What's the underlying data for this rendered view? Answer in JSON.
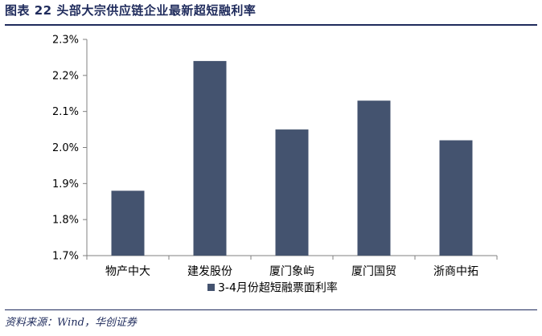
{
  "header": {
    "title": "图表 22 头部大宗供应链企业最新超短融利率"
  },
  "footer": {
    "source": "资料来源：Wind，华创证券"
  },
  "colors": {
    "bar": "#44536f",
    "title": "#1f2b5c",
    "axis": "#808080"
  },
  "chart_data": {
    "type": "bar",
    "title": "",
    "xlabel": "",
    "ylabel": "",
    "categories": [
      "物产中大",
      "建发股份",
      "厦门象屿",
      "厦门国贸",
      "浙商中拓"
    ],
    "series": [
      {
        "name": "3-4月份超短融票面利率",
        "values": [
          1.88,
          2.24,
          2.05,
          2.13,
          2.02
        ]
      }
    ],
    "ylim": [
      1.7,
      2.3
    ],
    "yticks": [
      1.7,
      1.8,
      1.9,
      2.0,
      2.1,
      2.2,
      2.3
    ],
    "ytick_labels": [
      "1.7%",
      "1.8%",
      "1.9%",
      "2.0%",
      "2.1%",
      "2.2%",
      "2.3%"
    ],
    "grid": false,
    "legend_position": "bottom"
  }
}
